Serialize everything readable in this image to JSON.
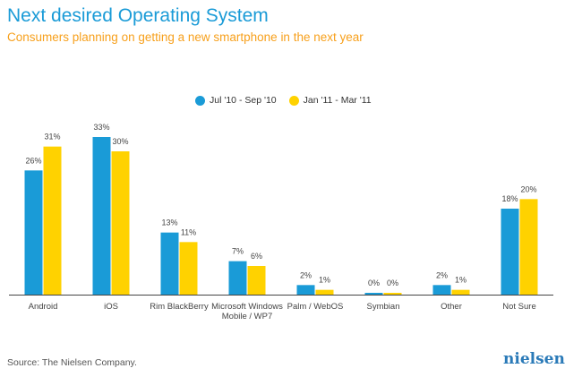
{
  "chart_data": {
    "type": "bar",
    "title": "Next desired Operating System",
    "subtitle": "Consumers planning on getting a new smartphone in the next year",
    "categories": [
      [
        "Android"
      ],
      [
        "iOS"
      ],
      [
        "Rim BlackBerry"
      ],
      [
        "Microsoft Windows",
        "Mobile / WP7"
      ],
      [
        "Palm / WebOS"
      ],
      [
        "Symbian"
      ],
      [
        "Other"
      ],
      [
        "Not Sure"
      ]
    ],
    "series": [
      {
        "name": "Jul '10 - Sep '10",
        "color": "#1a9bd7",
        "values": [
          26,
          33,
          13,
          7,
          2,
          0,
          2,
          18
        ]
      },
      {
        "name": "Jan '11 - Mar '11",
        "color": "#ffd200",
        "values": [
          31,
          30,
          11,
          6,
          1,
          0,
          1,
          20
        ]
      }
    ],
    "value_suffix": "%",
    "ylim": [
      0,
      35
    ]
  },
  "footer": {
    "source": "Source: The Nielsen Company.",
    "logo": "nielsen"
  }
}
